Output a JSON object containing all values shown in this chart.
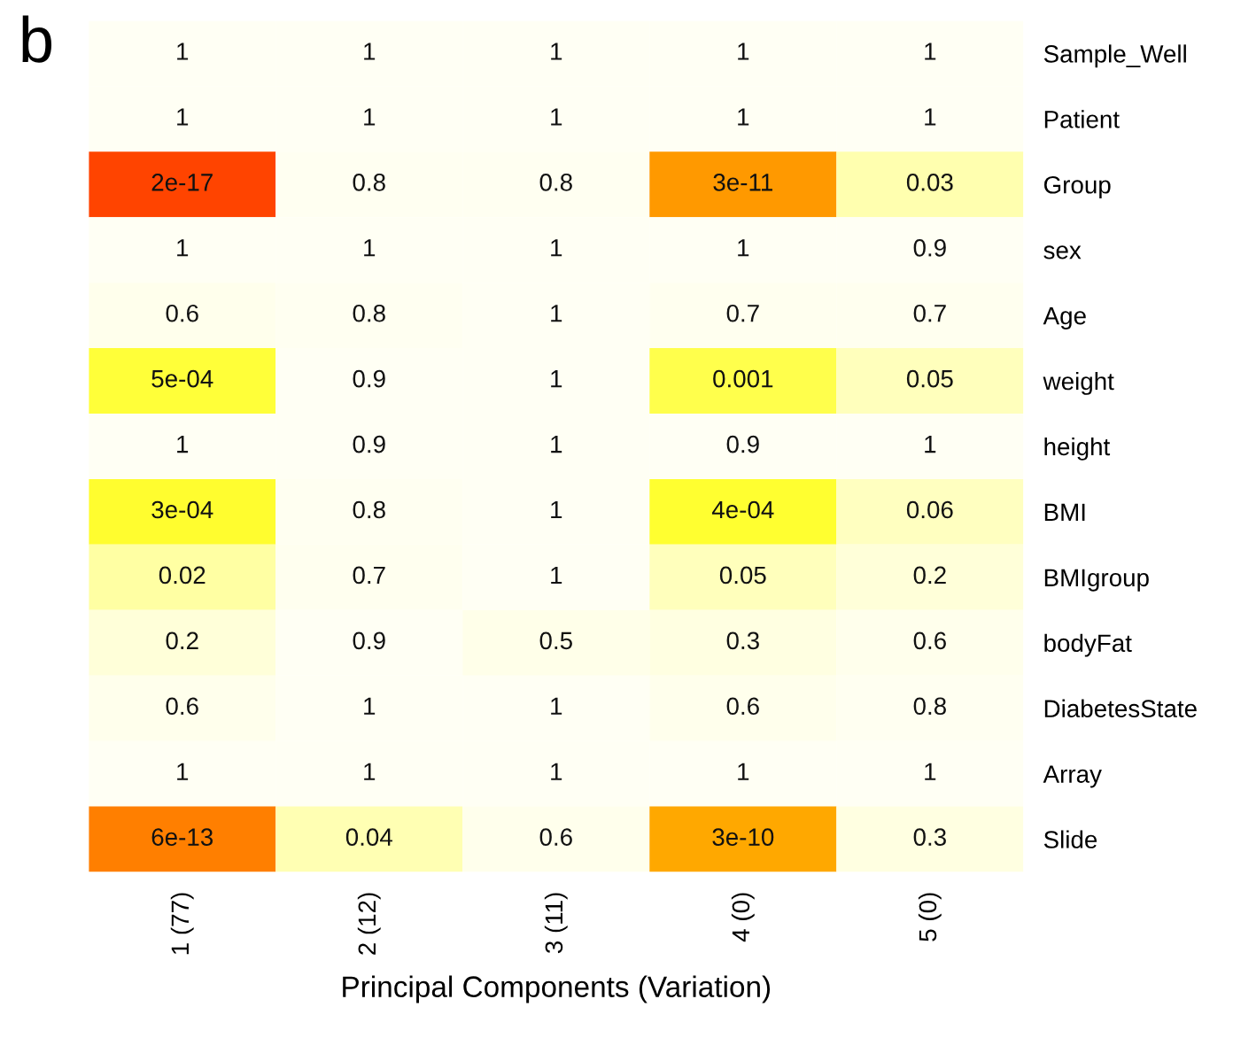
{
  "chart_data": {
    "type": "heatmap",
    "xlabel": "Principal Components (Variation)",
    "annotations": [
      "b"
    ],
    "categories": [
      "1 (77)",
      "2 (12)",
      "3 (11)",
      "4 (0)",
      "5 (0)"
    ],
    "y_categories": [
      "Sample_Well",
      "Patient",
      "Group",
      "sex",
      "Age",
      "weight",
      "height",
      "BMI",
      "BMIgroup",
      "bodyFat",
      "DiabetesState",
      "Array",
      "Slide"
    ],
    "cells": [
      [
        1,
        1,
        1,
        1,
        1
      ],
      [
        1,
        1,
        1,
        1,
        1
      ],
      [
        2e-17,
        0.8,
        0.8,
        3e-11,
        0.03
      ],
      [
        1,
        1,
        1,
        1,
        0.9
      ],
      [
        0.6,
        0.8,
        1,
        0.7,
        0.7
      ],
      [
        0.0005,
        0.9,
        1,
        0.001,
        0.05
      ],
      [
        1,
        0.9,
        1,
        0.9,
        1
      ],
      [
        0.0003,
        0.8,
        1,
        0.0004,
        0.06
      ],
      [
        0.02,
        0.7,
        1,
        0.05,
        0.2
      ],
      [
        0.2,
        0.9,
        0.5,
        0.3,
        0.6
      ],
      [
        0.6,
        1,
        1,
        0.6,
        0.8
      ],
      [
        1,
        1,
        1,
        1,
        1
      ],
      [
        6e-13,
        0.04,
        0.6,
        3e-10,
        0.3
      ]
    ],
    "cell_labels": [
      [
        "1",
        "1",
        "1",
        "1",
        "1"
      ],
      [
        "1",
        "1",
        "1",
        "1",
        "1"
      ],
      [
        "2e-17",
        "0.8",
        "0.8",
        "3e-11",
        "0.03"
      ],
      [
        "1",
        "1",
        "1",
        "1",
        "0.9"
      ],
      [
        "0.6",
        "0.8",
        "1",
        "0.7",
        "0.7"
      ],
      [
        "5e-04",
        "0.9",
        "1",
        "0.001",
        "0.05"
      ],
      [
        "1",
        "0.9",
        "1",
        "0.9",
        "1"
      ],
      [
        "3e-04",
        "0.8",
        "1",
        "4e-04",
        "0.06"
      ],
      [
        "0.02",
        "0.7",
        "1",
        "0.05",
        "0.2"
      ],
      [
        "0.2",
        "0.9",
        "0.5",
        "0.3",
        "0.6"
      ],
      [
        "0.6",
        "1",
        "1",
        "0.6",
        "0.8"
      ],
      [
        "1",
        "1",
        "1",
        "1",
        "1"
      ],
      [
        "6e-13",
        "0.04",
        "0.6",
        "3e-10",
        "0.3"
      ]
    ]
  }
}
